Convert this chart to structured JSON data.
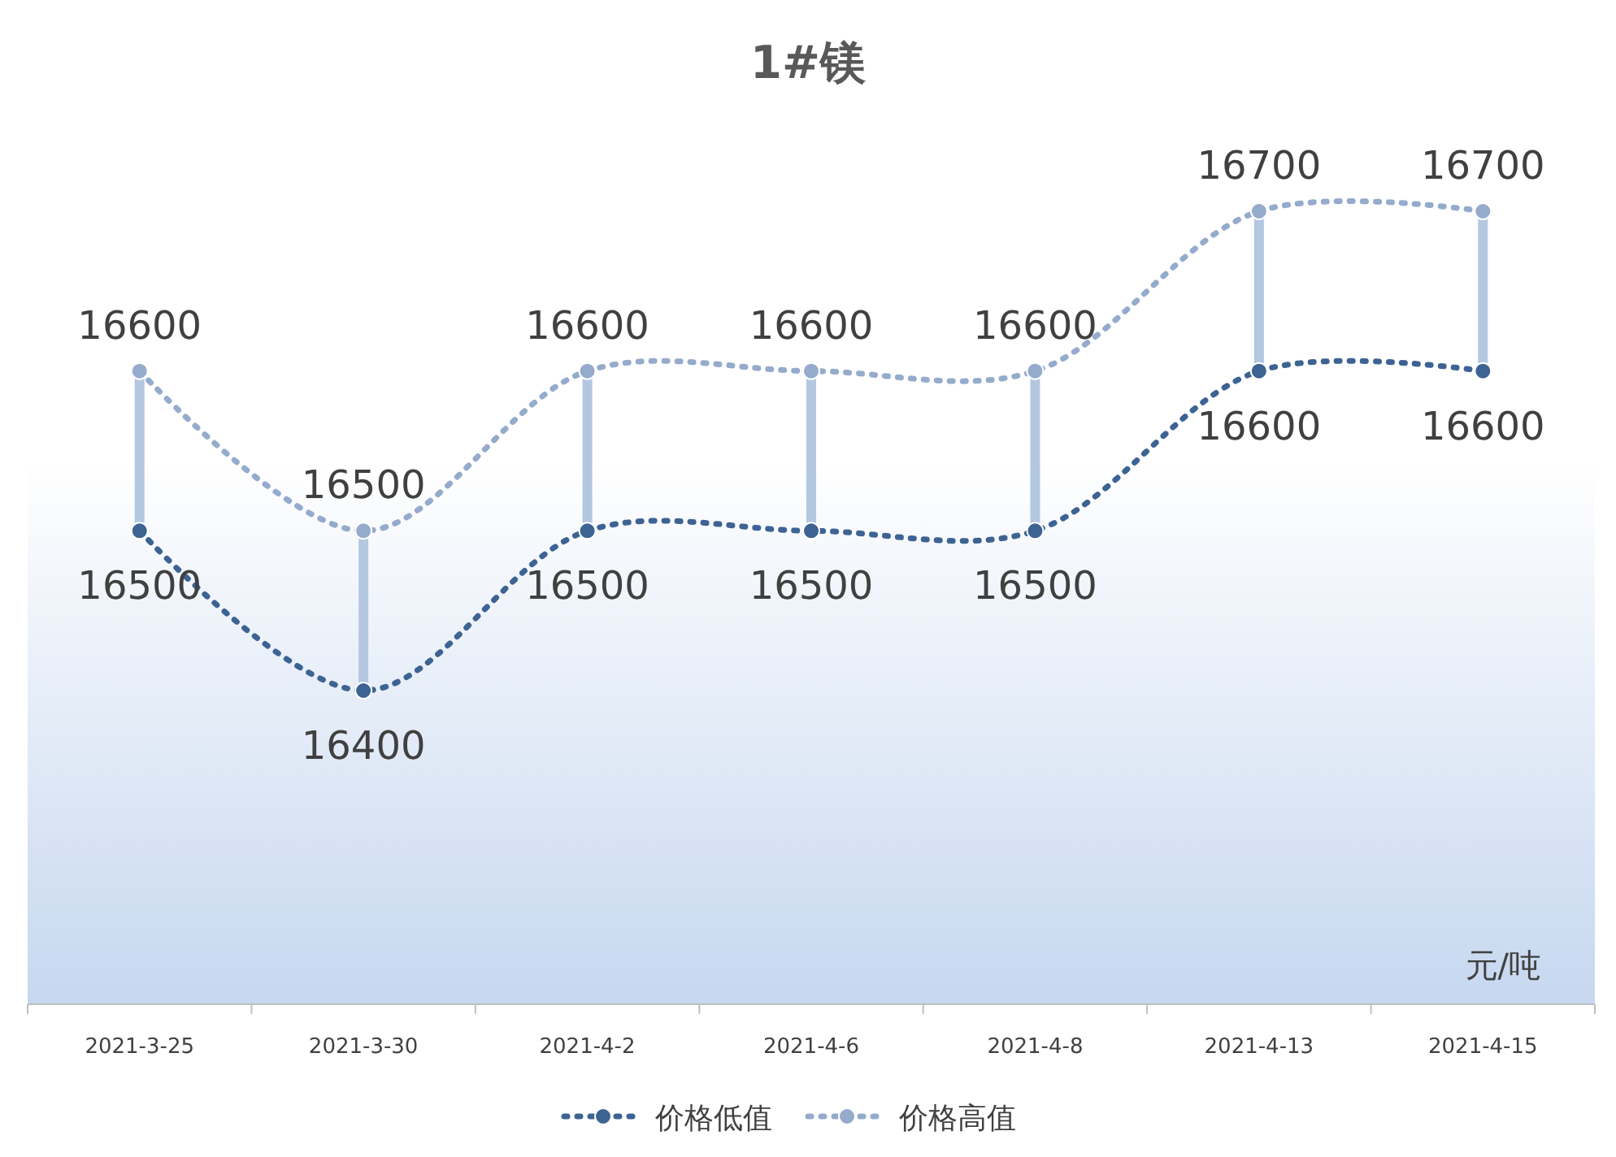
{
  "chart_data": {
    "type": "line",
    "title": "1#镁",
    "categories": [
      "2021-3-25",
      "2021-3-30",
      "2021-4-2",
      "2021-4-6",
      "2021-4-8",
      "2021-4-13",
      "2021-4-15"
    ],
    "series": [
      {
        "name": "价格低值",
        "color": "#3d6393",
        "values": [
          16500,
          16400,
          16500,
          16500,
          16500,
          16600,
          16600
        ]
      },
      {
        "name": "价格高值",
        "color": "#95abcc",
        "values": [
          16600,
          16500,
          16600,
          16600,
          16600,
          16700,
          16700
        ]
      }
    ],
    "annotations": [
      "元/吨"
    ],
    "data_labels": true,
    "marker": "circle",
    "line_style": "dotted",
    "legend": "bottom"
  }
}
